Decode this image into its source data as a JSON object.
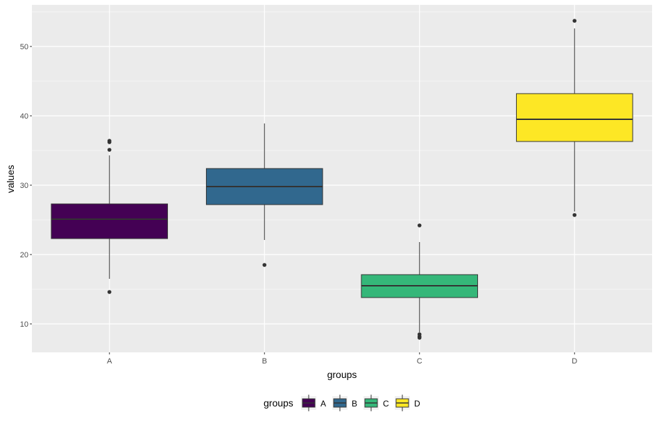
{
  "chart_data": {
    "type": "boxplot",
    "xlabel": "groups",
    "ylabel": "values",
    "categories": [
      "A",
      "B",
      "C",
      "D"
    ],
    "ylim": [
      5.9,
      56
    ],
    "yticks": [
      10,
      20,
      30,
      40,
      50
    ],
    "grid": true,
    "legend": {
      "title": "groups",
      "placement": "bottom",
      "entries": [
        "A",
        "B",
        "C",
        "D"
      ]
    },
    "colors": [
      "#440154",
      "#31688E",
      "#35B779",
      "#FDE725"
    ],
    "boxes": [
      {
        "group": "A",
        "lower_whisker": 16.5,
        "q1": 22.3,
        "median": 25.1,
        "q3": 27.3,
        "upper_whisker": 34.3,
        "outliers": [
          14.6,
          35.1,
          36.2,
          36.4
        ]
      },
      {
        "group": "B",
        "lower_whisker": 22.1,
        "q1": 27.2,
        "median": 29.8,
        "q3": 32.4,
        "upper_whisker": 38.9,
        "outliers": [
          18.5
        ]
      },
      {
        "group": "C",
        "lower_whisker": 8.8,
        "q1": 13.8,
        "median": 15.5,
        "q3": 17.1,
        "upper_whisker": 21.8,
        "outliers": [
          8.0,
          8.2,
          8.5,
          24.2
        ]
      },
      {
        "group": "D",
        "lower_whisker": 26.2,
        "q1": 36.3,
        "median": 39.5,
        "q3": 43.2,
        "upper_whisker": 52.6,
        "outliers": [
          25.7,
          53.7
        ]
      }
    ]
  }
}
